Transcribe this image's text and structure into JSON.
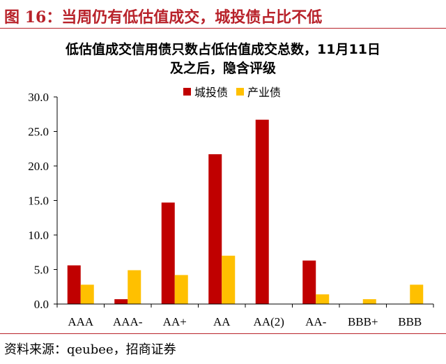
{
  "figure": {
    "label": "图 16：当周仍有低估值成交，城投债占比不低",
    "source": "资料来源：qeubee，招商证券"
  },
  "chart_data": {
    "type": "bar",
    "title_lines": [
      "低估值成交信用债只数占低估值成交总数，11月11日",
      "及之后，隐含评级"
    ],
    "categories": [
      "AAA",
      "AAA-",
      "AA+",
      "AA",
      "AA(2)",
      "AA-",
      "BBB+",
      "BBB"
    ],
    "series": [
      {
        "name": "城投债",
        "color": "#c00000",
        "values": [
          5.6,
          0.7,
          14.7,
          21.7,
          26.7,
          6.3,
          0,
          0
        ]
      },
      {
        "name": "产业债",
        "color": "#ffc000",
        "values": [
          2.8,
          4.9,
          4.2,
          7.0,
          0,
          1.4,
          0.7,
          2.8
        ]
      }
    ],
    "ylim": [
      0,
      30
    ],
    "yticks": [
      "30.0",
      "25.0",
      "20.0",
      "15.0",
      "10.0",
      "5.0",
      "0.0"
    ],
    "legend_position": "top-center",
    "grid": false
  }
}
